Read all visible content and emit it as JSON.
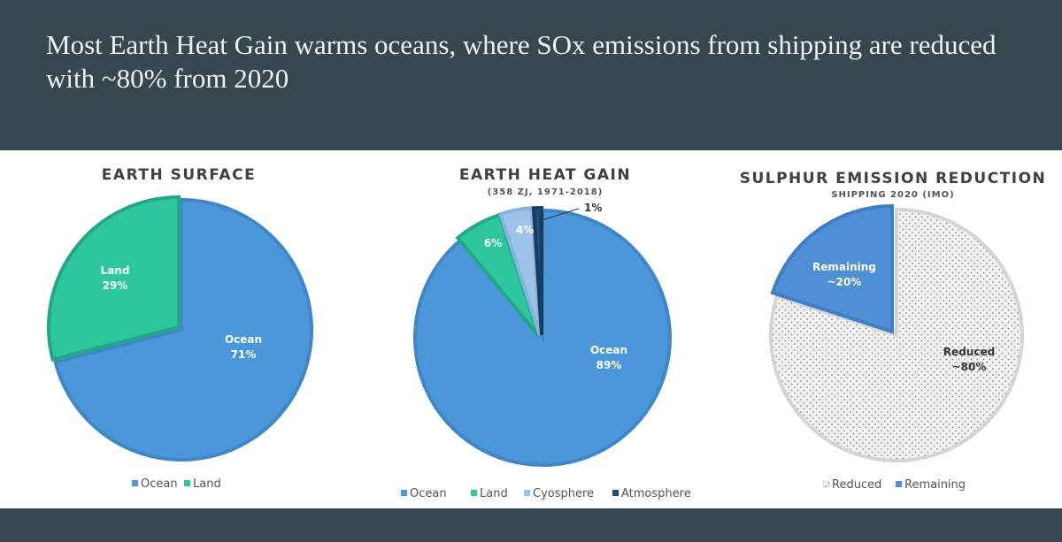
{
  "slide": {
    "title": "Most Earth Heat Gain warms oceans, where SOx emissions from shipping are reduced with ~80% from 2020"
  },
  "colors": {
    "background": "#37464f",
    "panel": "#ffffff",
    "ocean": "#4a97d9",
    "land": "#2cc79e",
    "cryosphere": "#9cc3ea",
    "atmosphere": "#1f4e79",
    "remaining": "#4e8fd6",
    "reduced": "#f2f2f2"
  },
  "chart_data": [
    {
      "type": "pie",
      "title": "EARTH SURFACE",
      "subtitle": "",
      "slices": [
        {
          "name": "Ocean",
          "value": 71,
          "label": "Ocean",
          "pct": "71%"
        },
        {
          "name": "Land",
          "value": 29,
          "label": "Land",
          "pct": "29%"
        }
      ],
      "legend": [
        "Ocean",
        "Land"
      ],
      "legend_position": "bottom"
    },
    {
      "type": "pie",
      "title": "EARTH HEAT GAIN",
      "subtitle": "(358 ZJ, 1971-2018)",
      "slices": [
        {
          "name": "Ocean",
          "value": 89,
          "label": "Ocean",
          "pct": "89%"
        },
        {
          "name": "Land",
          "value": 6,
          "label": "",
          "pct": "6%"
        },
        {
          "name": "Cyosphere",
          "value": 4,
          "label": "",
          "pct": "4%"
        },
        {
          "name": "Atmosphere",
          "value": 1,
          "label": "",
          "pct": "1%"
        }
      ],
      "legend": [
        "Ocean",
        "Land",
        "Cyosphere",
        "Atmosphere"
      ],
      "legend_position": "bottom"
    },
    {
      "type": "pie",
      "title": "SULPHUR EMISSION REDUCTION",
      "subtitle": "SHIPPING 2020 (IMO)",
      "slices": [
        {
          "name": "Reduced",
          "value": 80,
          "label": "Reduced",
          "pct": "~80%"
        },
        {
          "name": "Remaining",
          "value": 20,
          "label": "Remaining",
          "pct": "~20%"
        }
      ],
      "legend": [
        "Reduced",
        "Remaining"
      ],
      "legend_position": "bottom"
    }
  ]
}
